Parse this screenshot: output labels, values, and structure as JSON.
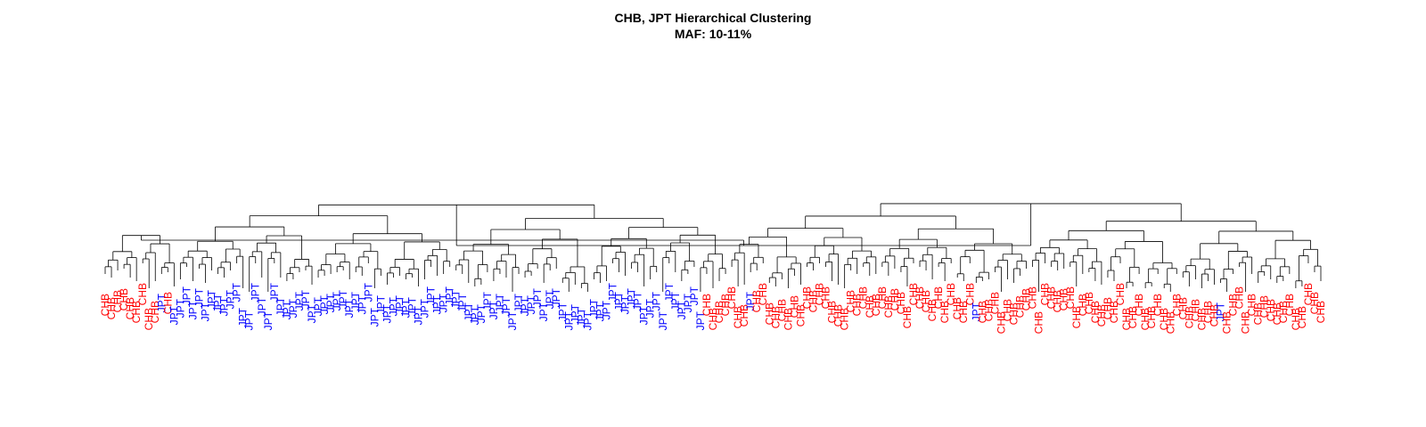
{
  "title": "CHB, JPT Hierarchical Clustering",
  "subtitle": "MAF: 10-11%",
  "colors": {
    "CHB": "#ff0000",
    "JPT": "#0000ff"
  },
  "leaf_order": "CCCCCCCCCJCJJJJJJJJJJJJJJJJJJJJJJJJJJJJJJJJJJJJJJJJJJJJJJJJJJJJJJJJJJJJJJJJJJJJJJJJJJJJJJJJJJJJJCCCCCCCJCCCCCCCCCCCCCCCCCCCCCCCCCCCCCCCCCCCJCCCCCCCCCCCCCCCCCCCCCCCCCCCCCCCCCCCCCCJCCCCCCCCCCCCCCCC",
  "chart_data": {
    "type": "dendrogram",
    "title": "CHB, JPT Hierarchical Clustering",
    "subtitle": "MAF: 10-11%",
    "groups": [
      "CHB",
      "JPT"
    ],
    "leaf_count": 182,
    "top_split": {
      "left_cluster": "mostly JPT",
      "right_cluster": "mostly CHB"
    }
  }
}
